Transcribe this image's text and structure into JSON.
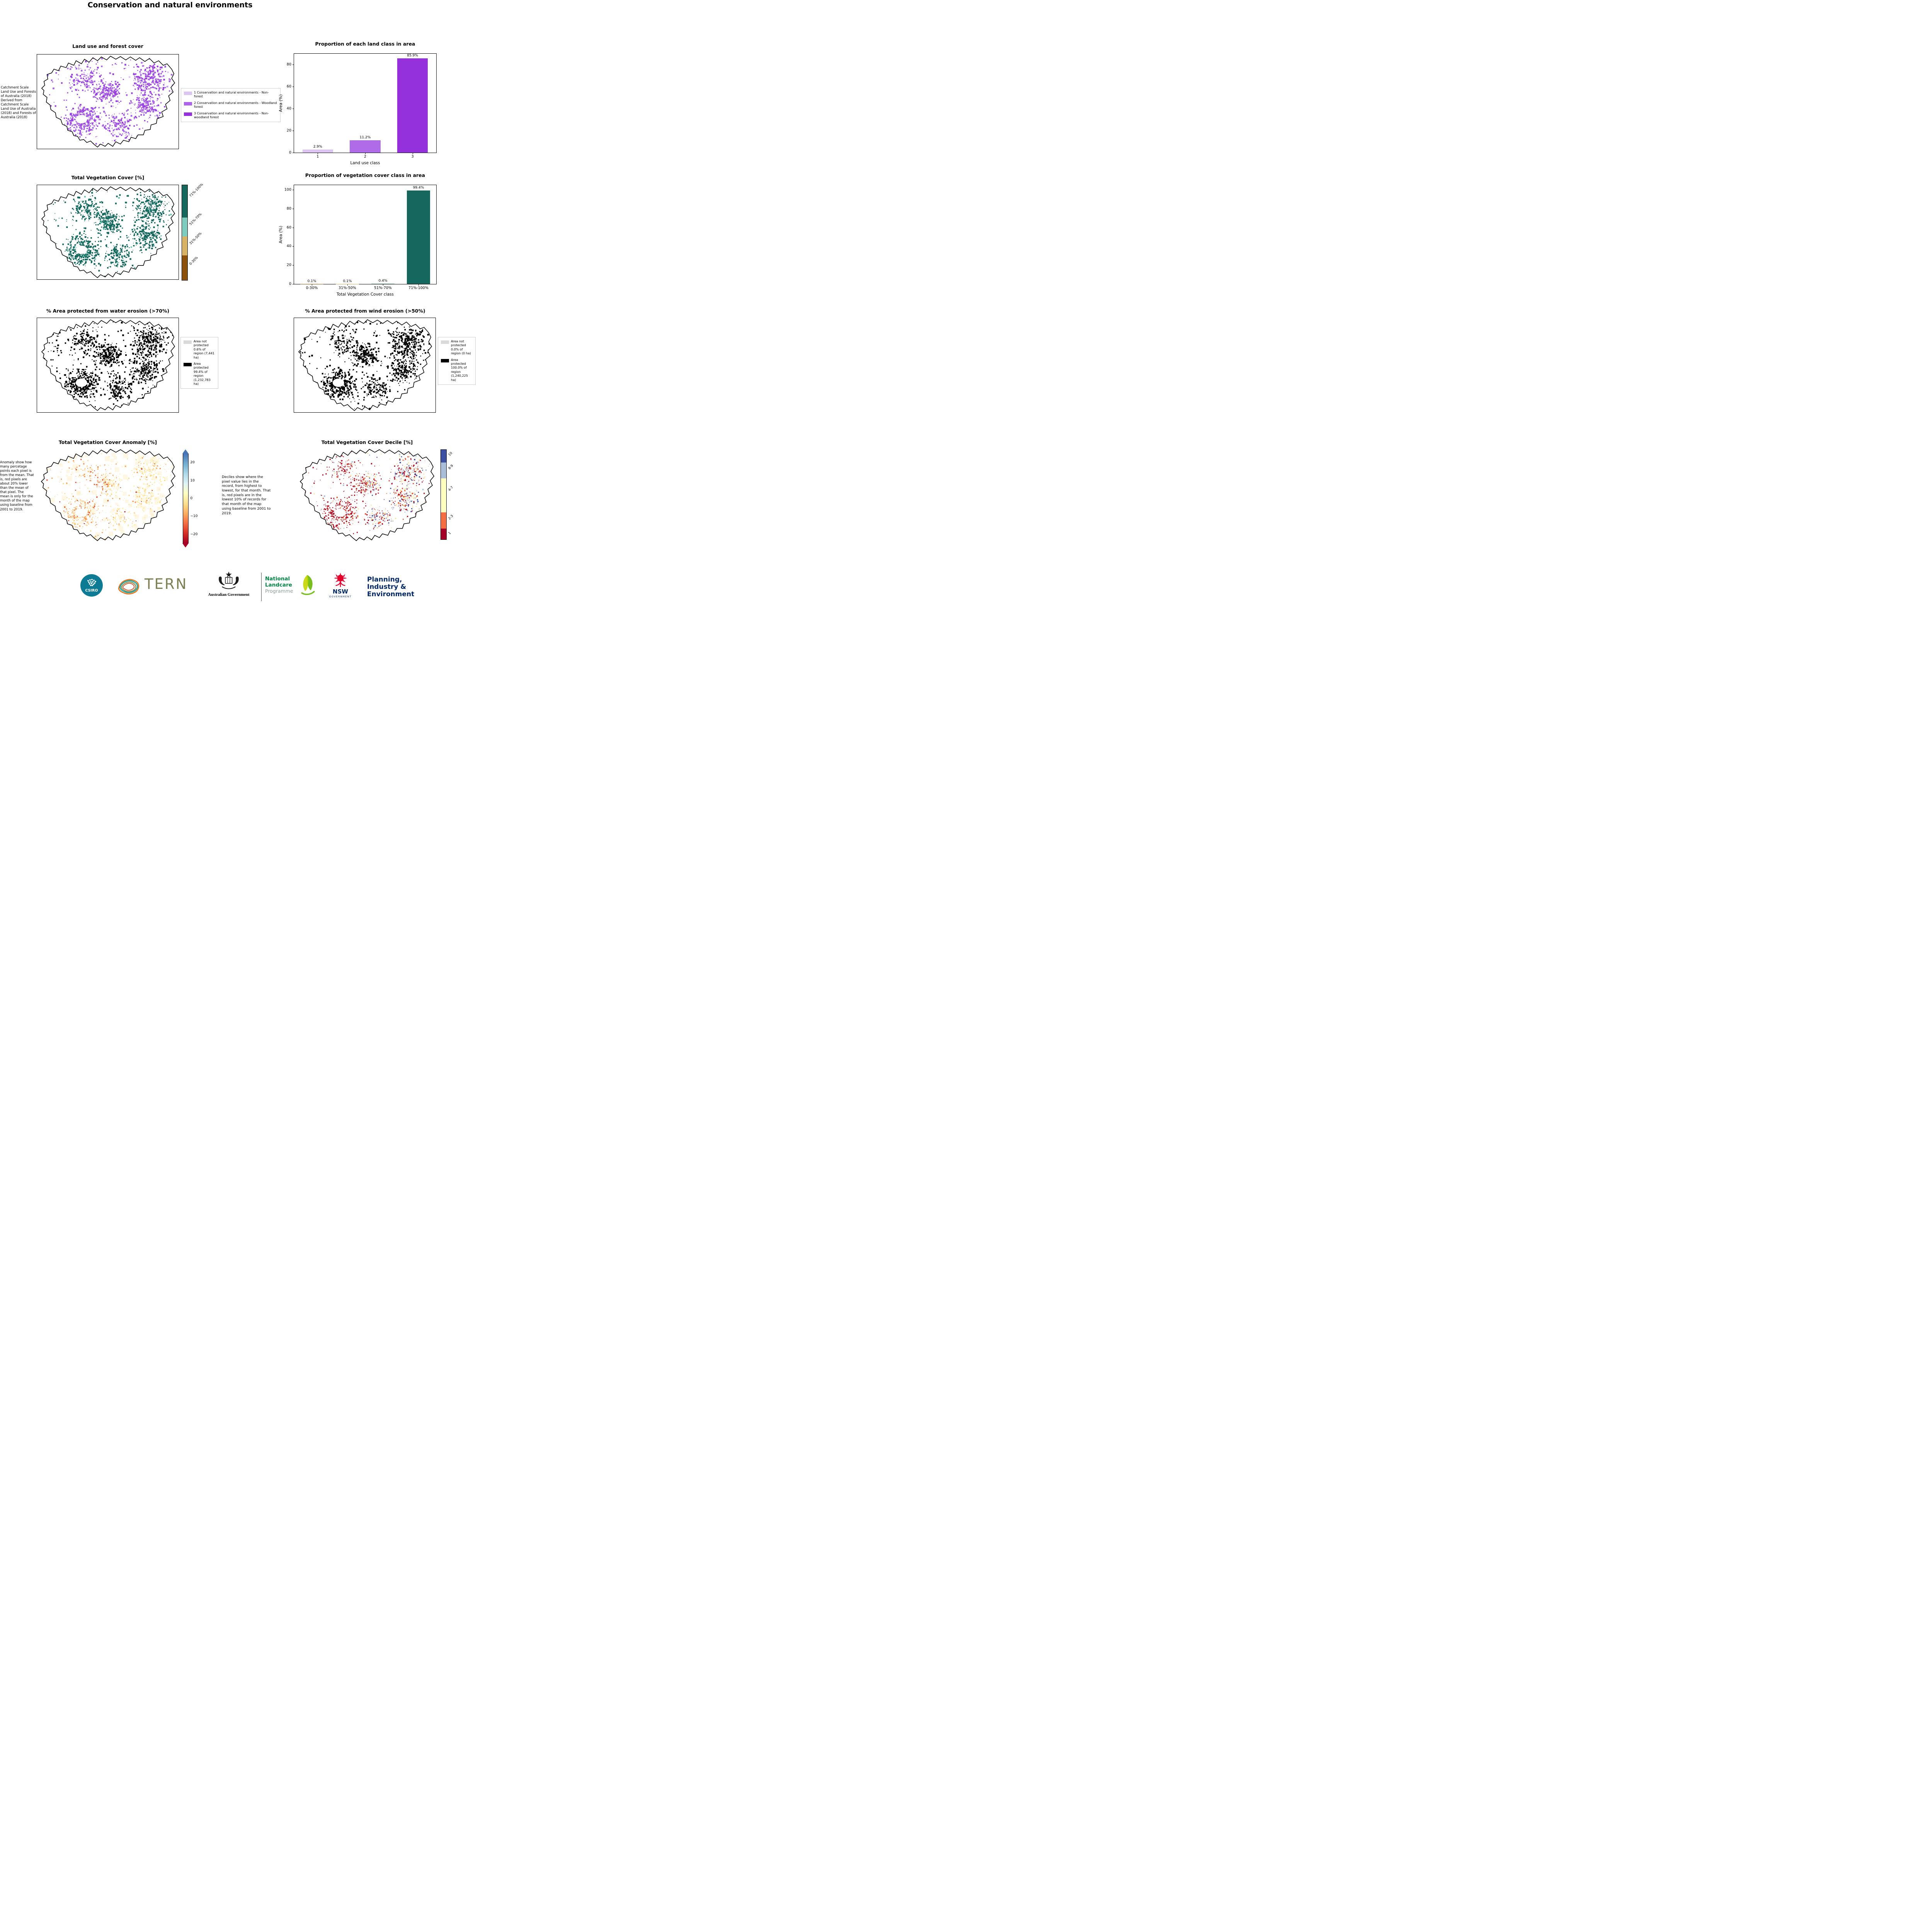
{
  "page": {
    "title": "Conservation and natural environments"
  },
  "panels": {
    "landuse": {
      "title": "Land use and forest cover",
      "side_note": "Catchment Scale Land Use and Forests of Australia (2018) Derived from Catchment Scale Land Use of Australia (2018) and Forests of Australia (2018)",
      "legend": [
        {
          "color": "#dcc5f2",
          "label": "1 Conservation and natural environments - Non-forest"
        },
        {
          "color": "#ad64ea",
          "label": "2 Conservation and natural environments - Woodland forest"
        },
        {
          "color": "#9430dc",
          "label": "3 Conservation and natural environments - Non-woodland forest"
        }
      ],
      "speckle": {
        "count": 1500,
        "palette": [
          [
            "#9a3fe0",
            0.5
          ],
          [
            "#a965e6",
            0.45
          ],
          [
            "#dcc5f2",
            0.05
          ]
        ]
      }
    },
    "vegcover": {
      "title": "Total Vegetation Cover [%]",
      "colorbar": {
        "labels": [
          "0-30%",
          "31%-50%",
          "51%-70%",
          "71%-100%"
        ],
        "colors": [
          "#8c510a",
          "#d8b365",
          "#7fccbe",
          "#15685d"
        ],
        "heights": [
          0.26,
          0.2,
          0.2,
          0.34
        ]
      },
      "speckle": {
        "count": 1500,
        "palette": [
          [
            "#15685d",
            0.95
          ],
          [
            "#63bfae",
            0.05
          ]
        ]
      }
    },
    "water": {
      "title": "% Area protected from water erosion (>70%)",
      "legend": [
        {
          "color": "#d9d9d9",
          "label": "Area not protected 0.6% of region (7,441 ha)"
        },
        {
          "color": "#000000",
          "label": "Area protected 99.4% of region (1,232,783 ha)"
        }
      ],
      "speckle": {
        "count": 1600,
        "palette": [
          [
            "#000000",
            1
          ]
        ]
      }
    },
    "wind": {
      "title": "% Area protected from wind erosion (>50%)",
      "legend": [
        {
          "color": "#d9d9d9",
          "label": "Area not protected 0.0% of region (0 ha)"
        },
        {
          "color": "#000000",
          "label": "Area protected 100.0% of region (1,240,225 ha)"
        }
      ],
      "speckle": {
        "count": 1500,
        "palette": [
          [
            "#000000",
            1
          ]
        ]
      }
    },
    "anomaly": {
      "title": "Total Vegetation Cover Anomaly [%]",
      "side_note": "Anomaly show how many percetage points each pixel is from the mean. That is, red pixels are about 20% lower than the mean of that pixel. The mean is only for the month of the map using baseline from 2001 to 2019.",
      "colorbar": {
        "ticks": [
          "20",
          "10",
          "0",
          "−10",
          "−20"
        ],
        "gradient": [
          "#4575b4",
          "#74add1",
          "#abd9e9",
          "#e0f3f8",
          "#ffffbf",
          "#fee090",
          "#fdae61",
          "#f46d43",
          "#d73027",
          "#a50026"
        ]
      },
      "speckle": {
        "count": 1100,
        "smin": 1,
        "smax": 3.6,
        "wash": "#fcf0c8",
        "west": [
          [
            "#fdd487",
            0.4
          ],
          [
            "#f89c5a",
            0.3
          ],
          [
            "#e05a3a",
            0.15
          ],
          [
            "#fde8a9",
            0.13
          ],
          [
            "#b52025",
            0.02
          ]
        ],
        "east": [
          [
            "#fdeeb0",
            0.6
          ],
          [
            "#fdd487",
            0.3
          ],
          [
            "#f89c5a",
            0.08
          ],
          [
            "#c22b25",
            0.02
          ]
        ]
      }
    },
    "decile": {
      "title": "Total Vegetation Cover Decile [%]",
      "side_note": "Deciles show where the pixel value lies in the record, from highest to lowest, for that month. That is, red pixels are in the lowest 10% of records for that month of the map using baseline from 2001 to 2019.",
      "colorbar": {
        "labels": [
          "1",
          "2-3",
          "4-7",
          "8-9",
          "10"
        ],
        "colors": [
          "#a50026",
          "#f46d43",
          "#ffffbf",
          "#a9bed8",
          "#3e50a2"
        ],
        "heights": [
          0.12,
          0.18,
          0.38,
          0.18,
          0.14
        ]
      },
      "speckle": {
        "count": 1400,
        "smin": 1,
        "smax": 3.6,
        "west": [
          [
            "#b01326",
            0.72
          ],
          [
            "#e8542f",
            0.14
          ],
          [
            "#f7e8a0",
            0.08
          ],
          [
            "#a9bed8",
            0.06
          ]
        ],
        "east": [
          [
            "#b01326",
            0.28
          ],
          [
            "#e8542f",
            0.12
          ],
          [
            "#f7e8a0",
            0.26
          ],
          [
            "#a9bed8",
            0.21
          ],
          [
            "#3e50a2",
            0.13
          ]
        ]
      }
    }
  },
  "chart_data": [
    {
      "type": "bar",
      "title": "Proportion of each land class in area",
      "xlabel": "Land use class",
      "ylabel": "Area (%)",
      "categories": [
        "1",
        "2",
        "3"
      ],
      "values": [
        2.9,
        11.2,
        85.9
      ],
      "bar_labels": [
        "2.9%",
        "11.2%",
        "85.9%"
      ],
      "colors": [
        "#dcc5f2",
        "#b06ce8",
        "#9430dc"
      ],
      "ylim": [
        0,
        90
      ],
      "yticks": [
        0,
        20,
        40,
        60,
        80
      ],
      "grid": false,
      "legend_position": "none"
    },
    {
      "type": "bar",
      "title": "Proportion of vegetation cover class in area",
      "xlabel": "Total Vegetation Cover class",
      "ylabel": "Area (%)",
      "categories": [
        "0-30%",
        "31%-50%",
        "51%-70%",
        "71%-100%"
      ],
      "values": [
        0.1,
        0.1,
        0.4,
        99.4
      ],
      "bar_labels": [
        "0.1%",
        "0.1%",
        "0.4%",
        "99.4%"
      ],
      "colors": [
        "#8c510a",
        "#d8b365",
        "#7fccbe",
        "#15685d"
      ],
      "ylim": [
        0,
        105
      ],
      "yticks": [
        0,
        20,
        40,
        60,
        80,
        100
      ],
      "grid": false,
      "legend_position": "none"
    }
  ],
  "footer": {
    "csiro": {
      "label": "CSIRO",
      "color": "#0c7b93"
    },
    "tern": {
      "label": "TERN",
      "color": "#7d7f52"
    },
    "aus_gov": {
      "label": "Australian Government"
    },
    "landcare": {
      "line1": "National",
      "line2": "Landcare",
      "line3": "Programme",
      "green": "#008542",
      "gray": "#8d9f97"
    },
    "nsw": {
      "label": "NSW",
      "sub": "GOVERNMENT",
      "red": "#e4002b",
      "navy": "#002664"
    },
    "planning": {
      "line1": "Planning,",
      "line2": "Industry &",
      "line3": "Environment",
      "color": "#002664"
    }
  }
}
